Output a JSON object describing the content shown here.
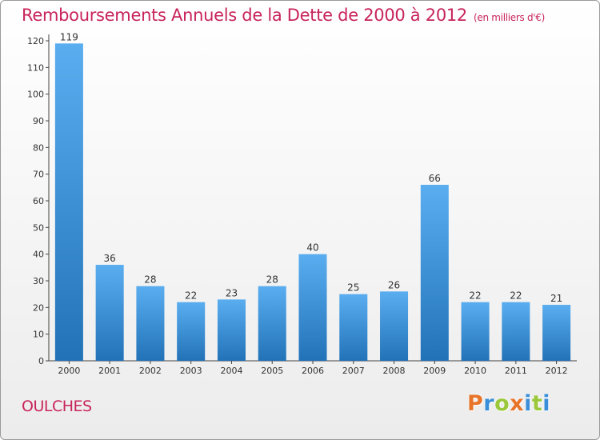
{
  "header": {
    "title": "Remboursements Annuels de la Dette de 2000 à 2012",
    "unit": "(en milliers d'€)"
  },
  "footer": {
    "place": "OULCHES",
    "logo": "Proxiti"
  },
  "colors": {
    "title": "#c8245a",
    "bar_top": "#5aaef0",
    "bar_bottom": "#2272b8",
    "logo_letters": [
      "#e8742a",
      "#3a8fd8",
      "#9bc83a",
      "#e8742a",
      "#3a8fd8",
      "#9bc83a",
      "#3a8fd8"
    ]
  },
  "chart_data": {
    "type": "bar",
    "categories": [
      "2000",
      "2001",
      "2002",
      "2003",
      "2004",
      "2005",
      "2006",
      "2007",
      "2008",
      "2009",
      "2010",
      "2011",
      "2012"
    ],
    "values": [
      119,
      36,
      28,
      22,
      23,
      28,
      40,
      25,
      26,
      66,
      22,
      22,
      21
    ],
    "ylim": [
      0,
      120
    ],
    "yticks": [
      0,
      10,
      20,
      30,
      40,
      50,
      60,
      70,
      80,
      90,
      100,
      110,
      120
    ],
    "grid": false
  }
}
